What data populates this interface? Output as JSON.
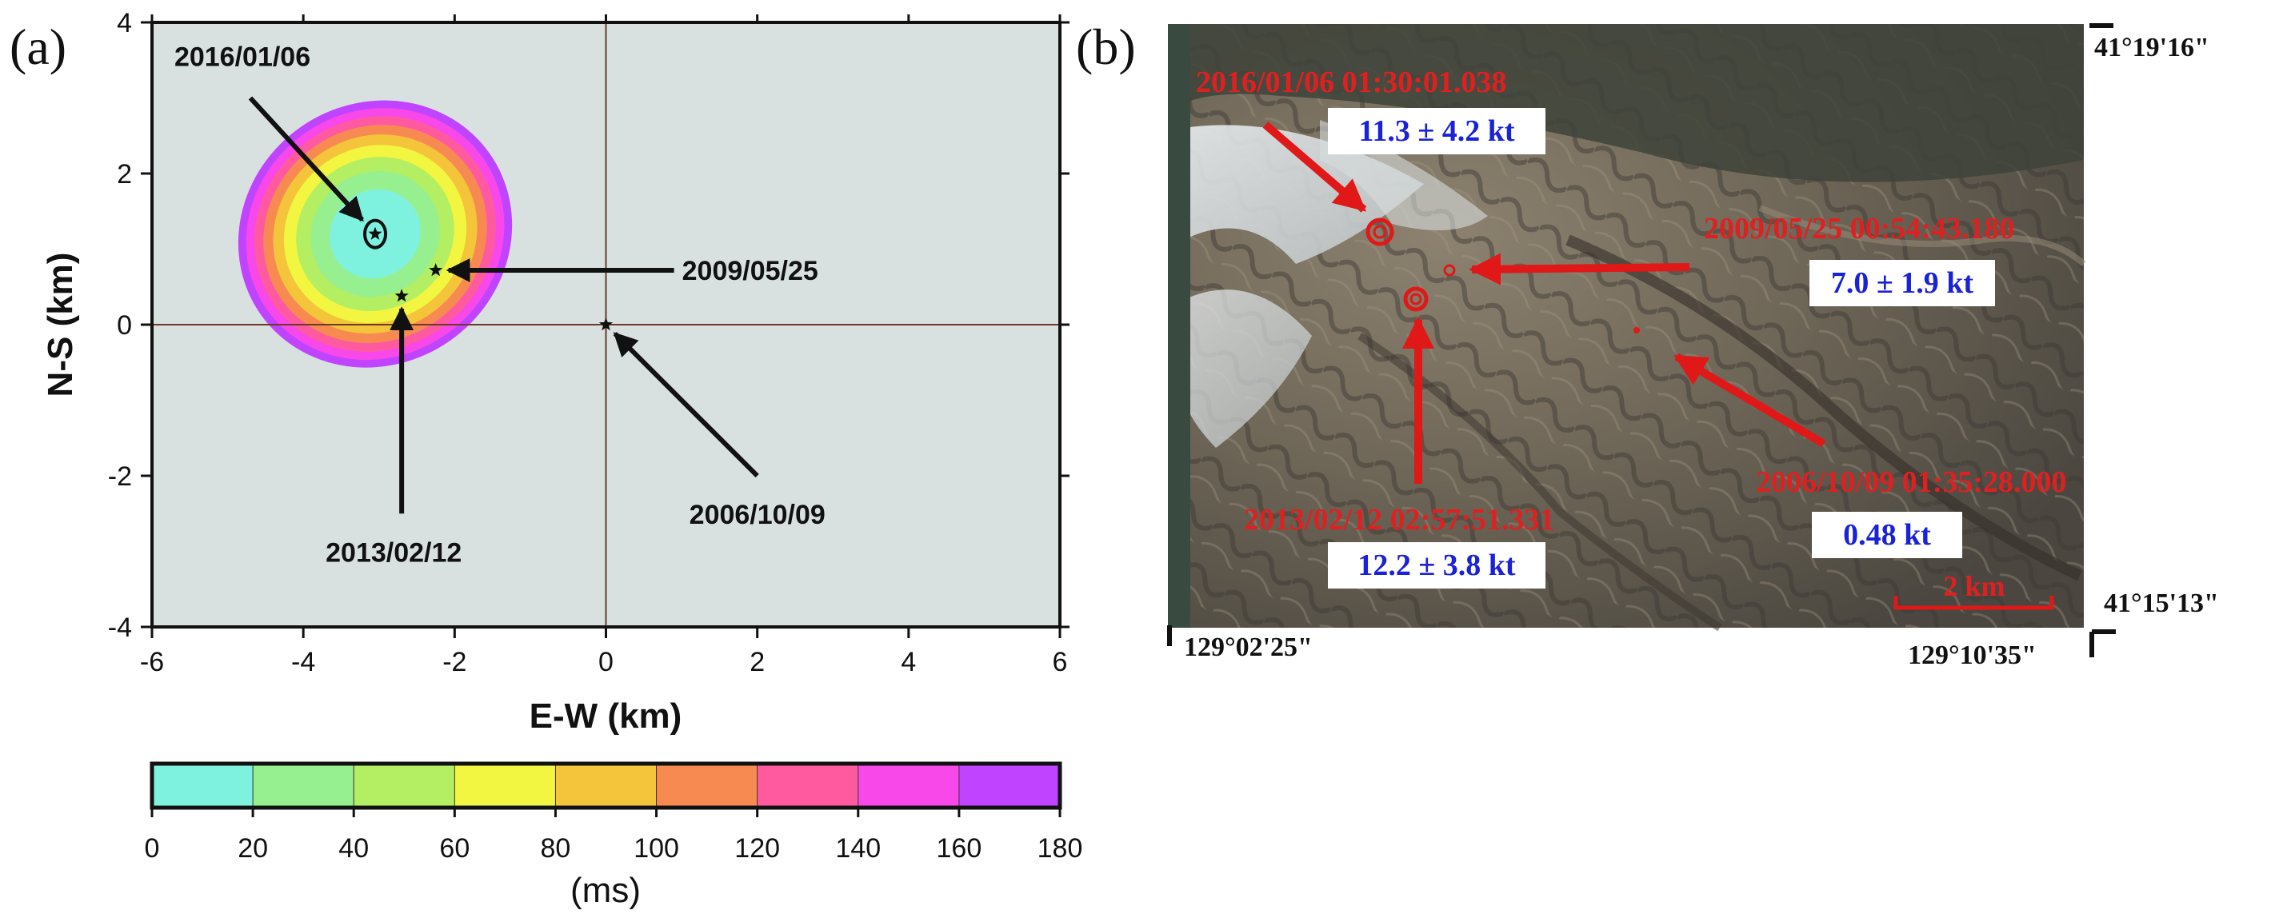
{
  "panel_a": {
    "letter": "(a)"
  },
  "panel_b": {
    "letter": "(b)"
  },
  "chart_data": [
    {
      "type": "heatmap",
      "xlabel": "E-W (km)",
      "ylabel": "N-S (km)",
      "xlim": [
        -6,
        6
      ],
      "ylim": [
        -4,
        4
      ],
      "xticks": [
        -6,
        -4,
        -2,
        0,
        2,
        4,
        6
      ],
      "yticks": [
        -4,
        -2,
        0,
        2,
        4
      ],
      "grid": false,
      "background_color": "#d9e0e0",
      "misfit_field": {
        "center": [
          -3.05,
          1.2
        ],
        "outer_semi_axes_km": [
          3.7,
          3.45
        ],
        "rotation_deg": -35,
        "contour_levels_ms": [
          20,
          40,
          60,
          80,
          100,
          120,
          140,
          160,
          180
        ]
      },
      "events": [
        {
          "date": "2006/10/09",
          "x": 0.0,
          "y": 0.0,
          "arrow_from": [
            2.0,
            -2.0
          ]
        },
        {
          "date": "2009/05/25",
          "x": -2.25,
          "y": 0.72,
          "arrow_from": [
            0.9,
            0.72
          ]
        },
        {
          "date": "2013/02/12",
          "x": -2.7,
          "y": 0.38,
          "arrow_from": [
            -2.7,
            -2.5
          ]
        },
        {
          "date": "2016/01/06",
          "x": -3.05,
          "y": 1.2,
          "arrow_from": [
            -4.7,
            3.0
          ]
        }
      ],
      "colorbar": {
        "unit": "(ms)",
        "ticks": [
          0,
          20,
          40,
          60,
          80,
          100,
          120,
          140,
          160,
          180
        ],
        "colors": [
          "#7ff2df",
          "#96f090",
          "#b4ee62",
          "#f2f640",
          "#f4c43a",
          "#f78a50",
          "#ff5aa0",
          "#f848ea",
          "#c044ff"
        ]
      }
    },
    {
      "type": "map",
      "coords": {
        "top_right": "41°19'16\"",
        "bottom_right": "41°15'13\"",
        "bottom_left": "129°02'25\"",
        "bottom_far": "129°10'35\""
      },
      "scalebar": "2 km",
      "events": [
        {
          "label": "2016/01/06 01:30:01.038",
          "yield": "11.3 ± 4.2 kt"
        },
        {
          "label": "2009/05/25 00:54:43.180",
          "yield": "7.0 ± 1.9 kt"
        },
        {
          "label": "2013/02/12 02:57:51.331",
          "yield": "12.2 ± 3.8 kt"
        },
        {
          "label": "2006/10/09 01:35:28.000",
          "yield": "0.48 kt"
        }
      ]
    }
  ]
}
